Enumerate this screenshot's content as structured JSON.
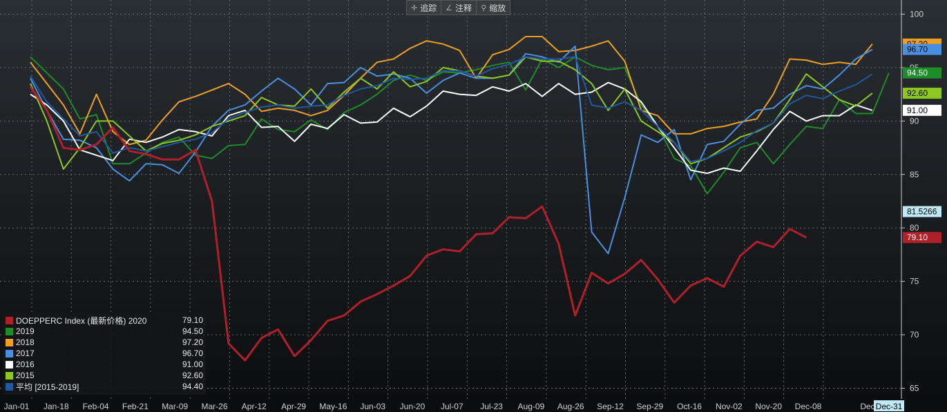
{
  "toolbar": {
    "track_label": "追踪",
    "annotate_label": "注释",
    "zoom_label": "缩放"
  },
  "chart_data": {
    "type": "line",
    "x_labels": [
      "Jan-01",
      "Jan-18",
      "Feb-04",
      "Feb-21",
      "Mar-09",
      "Mar-26",
      "Apr-12",
      "Apr-29",
      "May-16",
      "Jun-03",
      "Jun-20",
      "Jul-07",
      "Jul-23",
      "Aug-09",
      "Aug-26",
      "Sep-12",
      "Sep-29",
      "Oct-16",
      "Nov-02",
      "Nov-20",
      "Dec-08",
      "Dec",
      "Dec-31"
    ],
    "ylim": [
      64,
      101
    ],
    "y_ticks": [
      65,
      70,
      75,
      80,
      85,
      90,
      95,
      100
    ],
    "grid": true,
    "series": [
      {
        "name": "2019",
        "color": "#1f8c2a",
        "width": 2,
        "values": [
          96.0,
          94.5,
          93.0,
          90.2,
          90.6,
          86.0,
          86.0,
          87.0,
          88.0,
          88.5,
          86.8,
          86.5,
          87.7,
          87.8,
          90.2,
          89.2,
          89.0,
          90.1,
          89.2,
          90.8,
          91.5,
          92.5,
          93.8,
          94.3,
          93.8,
          94.6,
          94.5,
          94.8,
          95.2,
          95.5,
          92.9,
          95.8,
          95.0,
          96.0,
          95.2,
          94.8,
          95.0,
          91.5,
          89.5,
          86.5,
          85.8,
          83.2,
          85.2,
          87.5,
          88.0,
          86.0,
          87.8,
          89.5,
          89.3,
          92.0,
          90.7,
          90.7,
          94.5
        ]
      },
      {
        "name": "2018",
        "color": "#f0a020",
        "width": 2,
        "values": [
          95.5,
          93.5,
          91.5,
          88.8,
          92.5,
          89.0,
          87.8,
          88.2,
          90.1,
          91.8,
          92.3,
          92.9,
          93.5,
          92.5,
          90.9,
          91.2,
          91.0,
          90.5,
          91.0,
          92.4,
          94.0,
          95.5,
          95.8,
          96.8,
          97.5,
          97.2,
          96.6,
          94.0,
          96.2,
          96.7,
          97.9,
          97.9,
          96.5,
          96.6,
          97.0,
          97.5,
          95.6,
          91.0,
          90.5,
          88.8,
          88.8,
          89.3,
          89.5,
          89.9,
          90.2,
          92.5,
          95.8,
          95.7,
          95.3,
          95.5,
          95.3,
          97.2
        ]
      },
      {
        "name": "2017",
        "color": "#4a90e2",
        "width": 2,
        "values": [
          94.0,
          91.0,
          88.3,
          88.2,
          87.5,
          85.5,
          84.4,
          86.0,
          85.9,
          85.1,
          87.1,
          89.5,
          91.0,
          91.5,
          92.8,
          94.0,
          93.0,
          91.5,
          93.5,
          93.6,
          95.0,
          94.2,
          94.4,
          94.0,
          92.6,
          93.8,
          94.5,
          94.0,
          94.0,
          94.3,
          96.3,
          96.0,
          95.5,
          97.0,
          79.6,
          77.6,
          82.8,
          88.7,
          88.0,
          89.2,
          84.5,
          87.8,
          88.1,
          89.7,
          91.0,
          91.2,
          92.5,
          93.3,
          93.0,
          94.3,
          95.8,
          96.7
        ]
      },
      {
        "name": "2016",
        "color": "#ffffff",
        "width": 2,
        "values": [
          92.5,
          91.5,
          90.0,
          87.3,
          86.8,
          86.3,
          88.3,
          88.0,
          88.5,
          89.2,
          89.0,
          88.6,
          90.5,
          91.0,
          89.4,
          89.5,
          88.1,
          89.7,
          89.3,
          90.6,
          89.8,
          89.9,
          91.2,
          90.4,
          91.4,
          92.8,
          92.5,
          92.4,
          93.2,
          92.8,
          93.5,
          92.3,
          93.5,
          92.5,
          92.7,
          93.6,
          93.0,
          91.8,
          89.5,
          87.5,
          85.4,
          85.1,
          85.6,
          85.3,
          87.2,
          89.2,
          90.9,
          90.0,
          90.5,
          90.5,
          91.5,
          91.0
        ]
      },
      {
        "name": "2015",
        "color": "#8cc820",
        "width": 2,
        "values": [
          93.5,
          90.0,
          85.5,
          87.5,
          90.0,
          90.0,
          88.6,
          87.2,
          87.9,
          88.2,
          88.7,
          89.5,
          90.0,
          90.5,
          92.2,
          91.5,
          91.4,
          93.0,
          91.2,
          92.7,
          94.0,
          93.0,
          94.6,
          93.2,
          93.7,
          95.0,
          94.7,
          94.2,
          94.0,
          94.3,
          96.0,
          95.6,
          95.6,
          94.8,
          93.5,
          91.0,
          93.0,
          90.0,
          89.0,
          88.0,
          86.0,
          86.5,
          87.5,
          88.5,
          89.0,
          89.8,
          92.0,
          94.4,
          93.2,
          92.0,
          91.4,
          92.6
        ]
      },
      {
        "name": "平均 [2015-2019]",
        "color": "#1f5aa0",
        "width": 2,
        "values": [
          94.2,
          91.8,
          90.2,
          88.6,
          89.0,
          87.0,
          87.5,
          87.2,
          87.6,
          88.0,
          88.3,
          88.9,
          90.2,
          90.8,
          91.3,
          91.5,
          91.2,
          91.4,
          91.5,
          92.4,
          93.0,
          93.3,
          94.0,
          93.9,
          94.0,
          94.7,
          94.7,
          94.2,
          94.9,
          95.3,
          96.0,
          95.8,
          95.8,
          96.0,
          91.5,
          91.2,
          91.8,
          91.0,
          89.5,
          88.0,
          86.2,
          86.5,
          87.2,
          88.0,
          89.1,
          89.8,
          91.6,
          92.4,
          92.1,
          92.8,
          93.4,
          94.4
        ]
      },
      {
        "name": "DOEPPERC Index (最新价格) 2020",
        "color": "#b0202a",
        "width": 3,
        "values": [
          93.2,
          91.0,
          87.5,
          87.3,
          87.8,
          89.4,
          87.2,
          86.9,
          86.4,
          86.4,
          87.3,
          82.5,
          69.2,
          67.6,
          69.7,
          70.5,
          68.0,
          69.5,
          71.3,
          71.8,
          73.1,
          73.8,
          74.6,
          75.5,
          77.4,
          78.0,
          77.8,
          79.4,
          79.5,
          81.0,
          80.9,
          82.0,
          78.5,
          71.8,
          75.8,
          74.8,
          75.7,
          77.0,
          75.2,
          73.0,
          74.6,
          75.3,
          74.5,
          77.4,
          78.7,
          78.2,
          79.9,
          79.1
        ]
      }
    ],
    "legend": [
      {
        "name": "DOEPPERC Index (最新价格) 2020",
        "value": "79.10",
        "color": "#b0202a"
      },
      {
        "name": "2019",
        "value": "94.50",
        "color": "#1f8c2a"
      },
      {
        "name": "2018",
        "value": "97.20",
        "color": "#f0a020"
      },
      {
        "name": "2017",
        "value": "96.70",
        "color": "#4a90e2"
      },
      {
        "name": "2016",
        "value": "91.00",
        "color": "#ffffff"
      },
      {
        "name": "2015",
        "value": "92.60",
        "color": "#8cc820"
      },
      {
        "name": "平均 [2015-2019]",
        "value": "94.40",
        "color": "#1f5aa0"
      }
    ],
    "value_tags": [
      {
        "value": 97.2,
        "label": "97.20",
        "bg": "#f0a020",
        "fg": "#000000"
      },
      {
        "value": 96.7,
        "label": "96.70",
        "bg": "#4a90e2",
        "fg": "#000000"
      },
      {
        "value": 94.5,
        "label": "94.50",
        "bg": "#1f8c2a",
        "fg": "#ffffff"
      },
      {
        "value": 92.6,
        "label": "92.60",
        "bg": "#8cc820",
        "fg": "#000000"
      },
      {
        "value": 91.0,
        "label": "91.00",
        "bg": "#ffffff",
        "fg": "#000000"
      },
      {
        "value": 81.5266,
        "label": "81.5266",
        "bg": "#bfe8f5",
        "fg": "#000000"
      },
      {
        "value": 79.1,
        "label": "79.10",
        "bg": "#b0202a",
        "fg": "#ffffff"
      }
    ]
  }
}
